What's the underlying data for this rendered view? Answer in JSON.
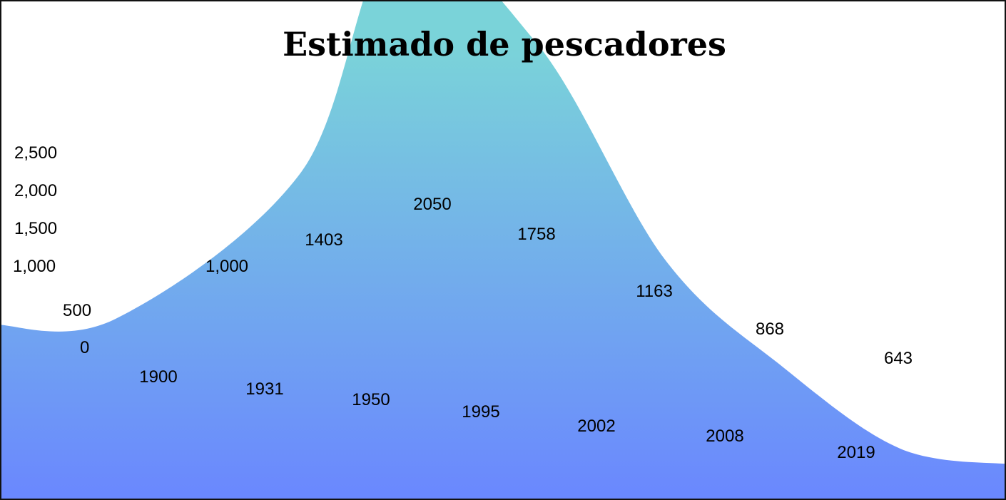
{
  "chart_data": {
    "type": "area",
    "title": "Estimado de pescadores",
    "xlabel": "",
    "ylabel": "",
    "categories": [
      "1900",
      "1931",
      "1950",
      "1995",
      "2002",
      "2008",
      "2019"
    ],
    "values": [
      1000,
      1403,
      2050,
      1758,
      1163,
      868,
      643
    ],
    "value_labels": [
      "1,000",
      "1403",
      "2050",
      "1758",
      "1163",
      "868",
      "643"
    ],
    "y_ticks": [
      "2,500",
      "2,000",
      "1,500",
      "1,000",
      "500",
      "0"
    ],
    "ylim": [
      0,
      2500
    ],
    "grid": false,
    "legend": "none",
    "colors": {
      "fill_top": "#7AD3D9",
      "fill_bottom": "#6A86FF",
      "text": "#000000",
      "border": "#111111"
    }
  }
}
